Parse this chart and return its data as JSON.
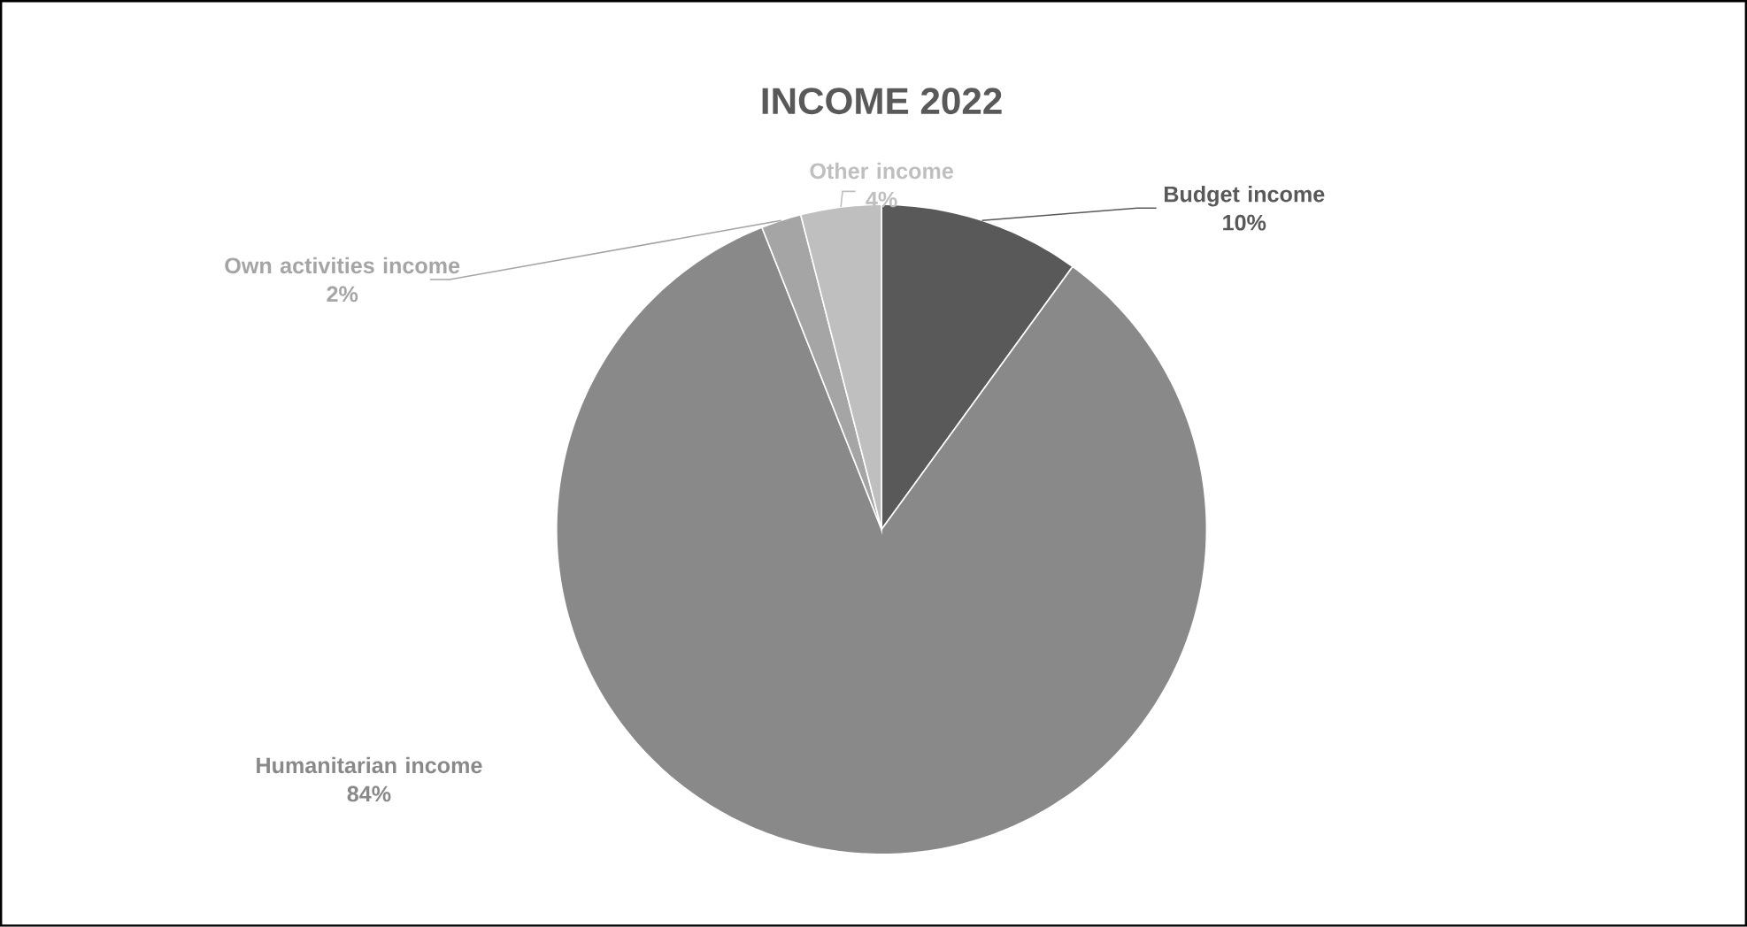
{
  "chart_data": {
    "type": "pie",
    "title": "INCOME 2022",
    "categories": [
      "Budget income",
      "Humanitarian income",
      "Own activities income",
      "Other income"
    ],
    "values": [
      10,
      84,
      2,
      4
    ],
    "value_labels": [
      "10%",
      "84%",
      "2%",
      "4%"
    ],
    "colors": [
      "#595959",
      "#898989",
      "#a5a5a5",
      "#bfbfbf"
    ]
  }
}
